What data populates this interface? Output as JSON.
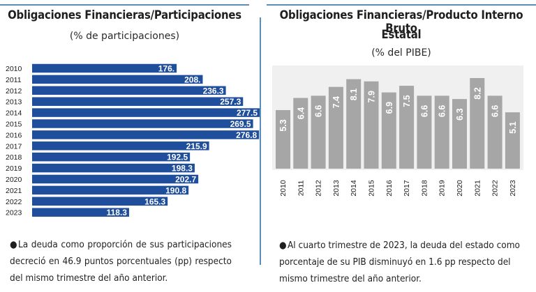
{
  "left": {
    "title": "Obligaciones Financieras/Participaciones",
    "subtitle": "(% de participaciones)",
    "note": "La deuda como proporción de sus participaciones decreció en 46.9 puntos porcentuales (pp) respecto del mismo trimestre del año anterior."
  },
  "right": {
    "title_line1": "Obligaciones Financieras/Producto Interno Bruto",
    "title_line2": "Estatal",
    "subtitle": "(% del PIBE)",
    "note": "Al cuarto trimestre de 2023, la deuda del estado como porcentaje de su PIB disminuyó en 1.6 pp respecto del mismo trimestre del año anterior."
  },
  "chart_data": [
    {
      "type": "bar",
      "orientation": "horizontal",
      "title": "Obligaciones Financieras/Participaciones",
      "subtitle": "(% de participaciones)",
      "categories": [
        "2010",
        "2011",
        "2012",
        "2013",
        "2014",
        "2015",
        "2016",
        "2017",
        "2018",
        "2019",
        "2020",
        "2021",
        "2022",
        "2023"
      ],
      "values": [
        176.3,
        208.1,
        236.3,
        257.3,
        277.5,
        269.5,
        276.8,
        215.9,
        192.5,
        198.3,
        202.7,
        190.8,
        165.3,
        118.3
      ],
      "labels": [
        "176.",
        "208.",
        "236.3",
        "257.3",
        "277.5",
        "269.5",
        "276.8",
        "215.9",
        "192.5",
        "198.3",
        "202.7",
        "190.8",
        "165.3",
        "118.3"
      ],
      "color": "#1f4e9c"
    },
    {
      "type": "bar",
      "orientation": "vertical",
      "title": "Obligaciones Financieras/Producto Interno Bruto Estatal",
      "subtitle": "(% del PIBE)",
      "categories": [
        "2010",
        "2011",
        "2012",
        "2013",
        "2014",
        "2015",
        "2016",
        "2017",
        "2018",
        "2019",
        "2020",
        "2021",
        "2022",
        "2023"
      ],
      "values": [
        5.3,
        6.4,
        6.6,
        7.4,
        8.1,
        7.9,
        6.9,
        7.5,
        6.6,
        6.6,
        6.3,
        8.2,
        6.6,
        5.1
      ],
      "color": "#a6a6a6",
      "plot_background": "#f0f0f0"
    }
  ]
}
